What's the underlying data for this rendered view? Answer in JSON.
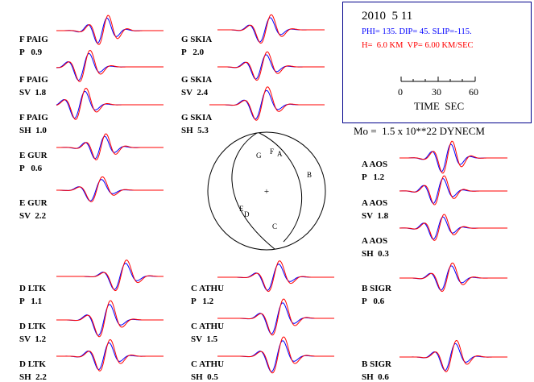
{
  "event": {
    "date": "2010  5 11",
    "mechanism": "PHI= 135. DIP= 45. SLIP=-115.",
    "depth": "H=  6.0 KM  VP= 6.00 KM/SEC",
    "time_scale": {
      "ticks": [
        "0",
        "30",
        "60"
      ],
      "label": "TIME  SEC"
    },
    "moment": "Mo =  1.5 x 10**22 DYNECM"
  },
  "colors": {
    "observed": "#0000ff",
    "synthetic": "#ff0000",
    "box": "#00008b"
  },
  "beachball": {
    "center_mark": "+",
    "stations": [
      "G",
      "F",
      "A",
      "B",
      "E",
      "D",
      "C"
    ]
  },
  "traces": [
    {
      "id": "paig-p",
      "name": "F PAIG",
      "comp": "P   0.9"
    },
    {
      "id": "paig-sv",
      "name": "F PAIG",
      "comp": "SV  1.8"
    },
    {
      "id": "paig-sh",
      "name": "F PAIG",
      "comp": "SH  1.0"
    },
    {
      "id": "gur-p",
      "name": "E GUR",
      "comp": "P   0.6"
    },
    {
      "id": "gur-sv",
      "name": "E GUR",
      "comp": "SV  2.2"
    },
    {
      "id": "skia-p",
      "name": "G SKIA",
      "comp": "P   2.0"
    },
    {
      "id": "skia-sv",
      "name": "G SKIA",
      "comp": "SV  2.4"
    },
    {
      "id": "skia-sh",
      "name": "G SKIA",
      "comp": "SH  5.3"
    },
    {
      "id": "aos-p",
      "name": "A AOS",
      "comp": "P   1.2"
    },
    {
      "id": "aos-sv",
      "name": "A AOS",
      "comp": "SV  1.8"
    },
    {
      "id": "aos-sh",
      "name": "A AOS",
      "comp": "SH  0.3"
    },
    {
      "id": "ltk-p",
      "name": "D LTK",
      "comp": "P   1.1"
    },
    {
      "id": "ltk-sv",
      "name": "D LTK",
      "comp": "SV  1.2"
    },
    {
      "id": "ltk-sh",
      "name": "D LTK",
      "comp": "SH  2.2"
    },
    {
      "id": "athu-p",
      "name": "C ATHU",
      "comp": "P   1.2"
    },
    {
      "id": "athu-sv",
      "name": "C ATHU",
      "comp": "SV  1.5"
    },
    {
      "id": "athu-sh",
      "name": "C ATHU",
      "comp": "SH  0.5"
    },
    {
      "id": "sigr-p",
      "name": "B SIGR",
      "comp": "P   0.6"
    },
    {
      "id": "sigr-sh",
      "name": "B SIGR",
      "comp": "SH  0.6"
    }
  ]
}
